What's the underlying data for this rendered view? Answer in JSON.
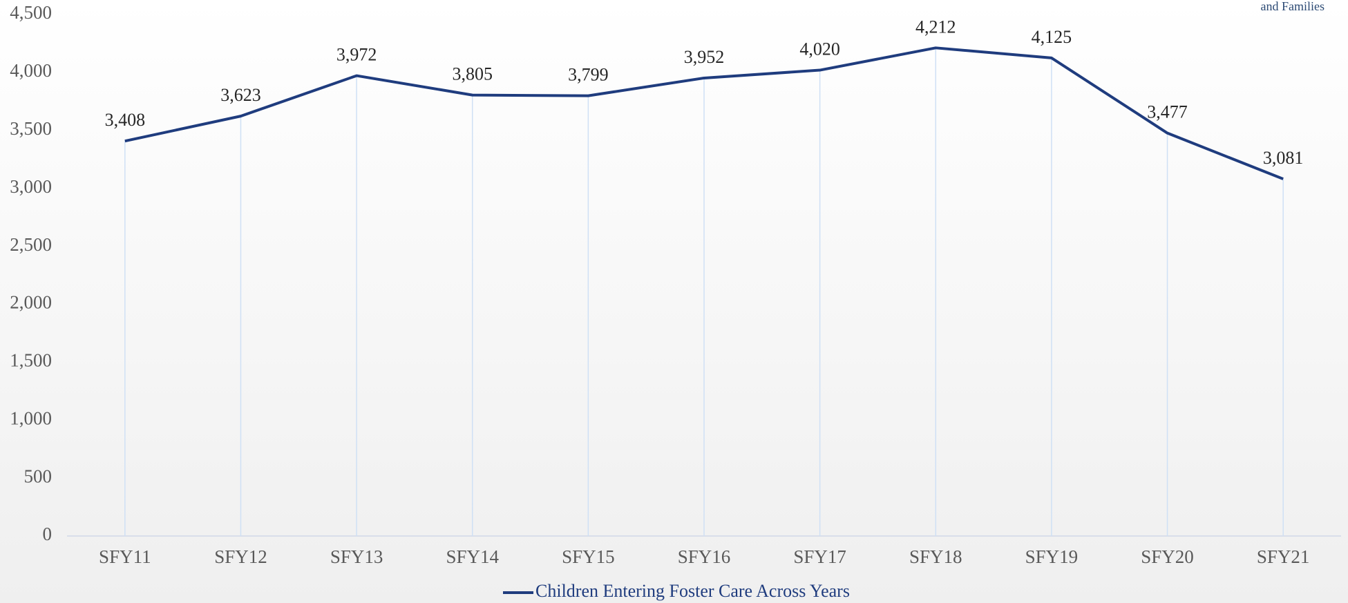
{
  "corner_text": "and Families",
  "chart_data": {
    "type": "line",
    "categories": [
      "SFY11",
      "SFY12",
      "SFY13",
      "SFY14",
      "SFY15",
      "SFY16",
      "SFY17",
      "SFY18",
      "SFY19",
      "SFY20",
      "SFY21"
    ],
    "series": [
      {
        "name": "Children Entering Foster Care Across Years",
        "color": "#1f3c7e",
        "values": [
          3408,
          3623,
          3972,
          3805,
          3799,
          3952,
          4020,
          4212,
          4125,
          3477,
          3081
        ],
        "value_labels": [
          "3,408",
          "3,623",
          "3,972",
          "3,805",
          "3,799",
          "3,952",
          "4,020",
          "4,212",
          "4,125",
          "3,477",
          "3,081"
        ]
      }
    ],
    "ylim": [
      0,
      4500
    ],
    "yticks": [
      0,
      500,
      {
        "value": 1000,
        "label": "1,000"
      },
      {
        "value": 1500,
        "label": "1,500"
      },
      {
        "value": 2000,
        "label": "2,000"
      },
      {
        "value": 2500,
        "label": "2,500"
      },
      {
        "value": 3000,
        "label": "3,000"
      },
      {
        "value": 3500,
        "label": "3,500"
      },
      {
        "value": 4000,
        "label": "4,000"
      },
      {
        "value": 4500,
        "label": "4,500"
      }
    ],
    "drop_lines": true,
    "legend": "bottom"
  }
}
